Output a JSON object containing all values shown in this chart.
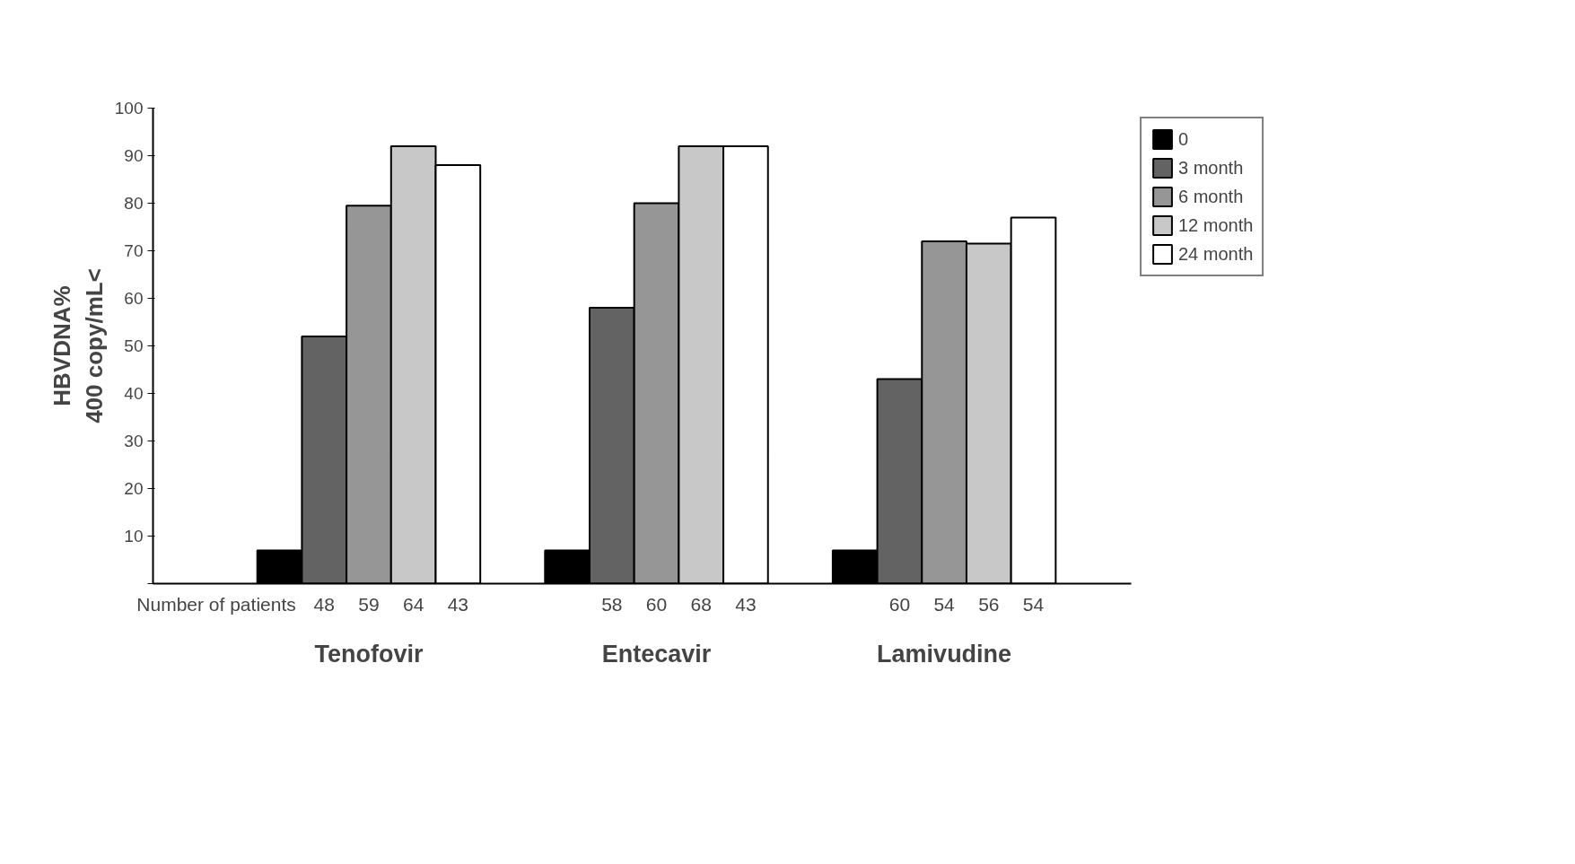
{
  "chart_data": {
    "type": "bar",
    "ylabel": "HBVDNA%\n400 copy/mL<",
    "categories": [
      "Tenofovir",
      "Entecavir",
      "Lamivudine"
    ],
    "series": [
      {
        "name": "0",
        "color": "#000000",
        "values": [
          7,
          7,
          7
        ]
      },
      {
        "name": "3 month",
        "color": "#636363",
        "values": [
          52,
          58,
          43
        ]
      },
      {
        "name": "6 month",
        "color": "#969696",
        "values": [
          79.5,
          80,
          72
        ]
      },
      {
        "name": "12 month",
        "color": "#c8c8c8",
        "values": [
          92,
          92,
          71.5
        ]
      },
      {
        "name": "24 month",
        "color": "#ffffff",
        "values": [
          88,
          92,
          77
        ]
      }
    ],
    "ylim": [
      0,
      100
    ],
    "yticks": [
      {
        "value": 0,
        "label": null
      },
      10,
      20,
      30,
      40,
      50,
      60,
      70,
      80,
      90,
      100
    ],
    "grid": false,
    "legend": "right",
    "annotations": [
      "Number of patients",
      "48",
      "59",
      "64",
      "43",
      "58",
      "60",
      "68",
      "43",
      "60",
      "54",
      "56",
      "54"
    ]
  }
}
